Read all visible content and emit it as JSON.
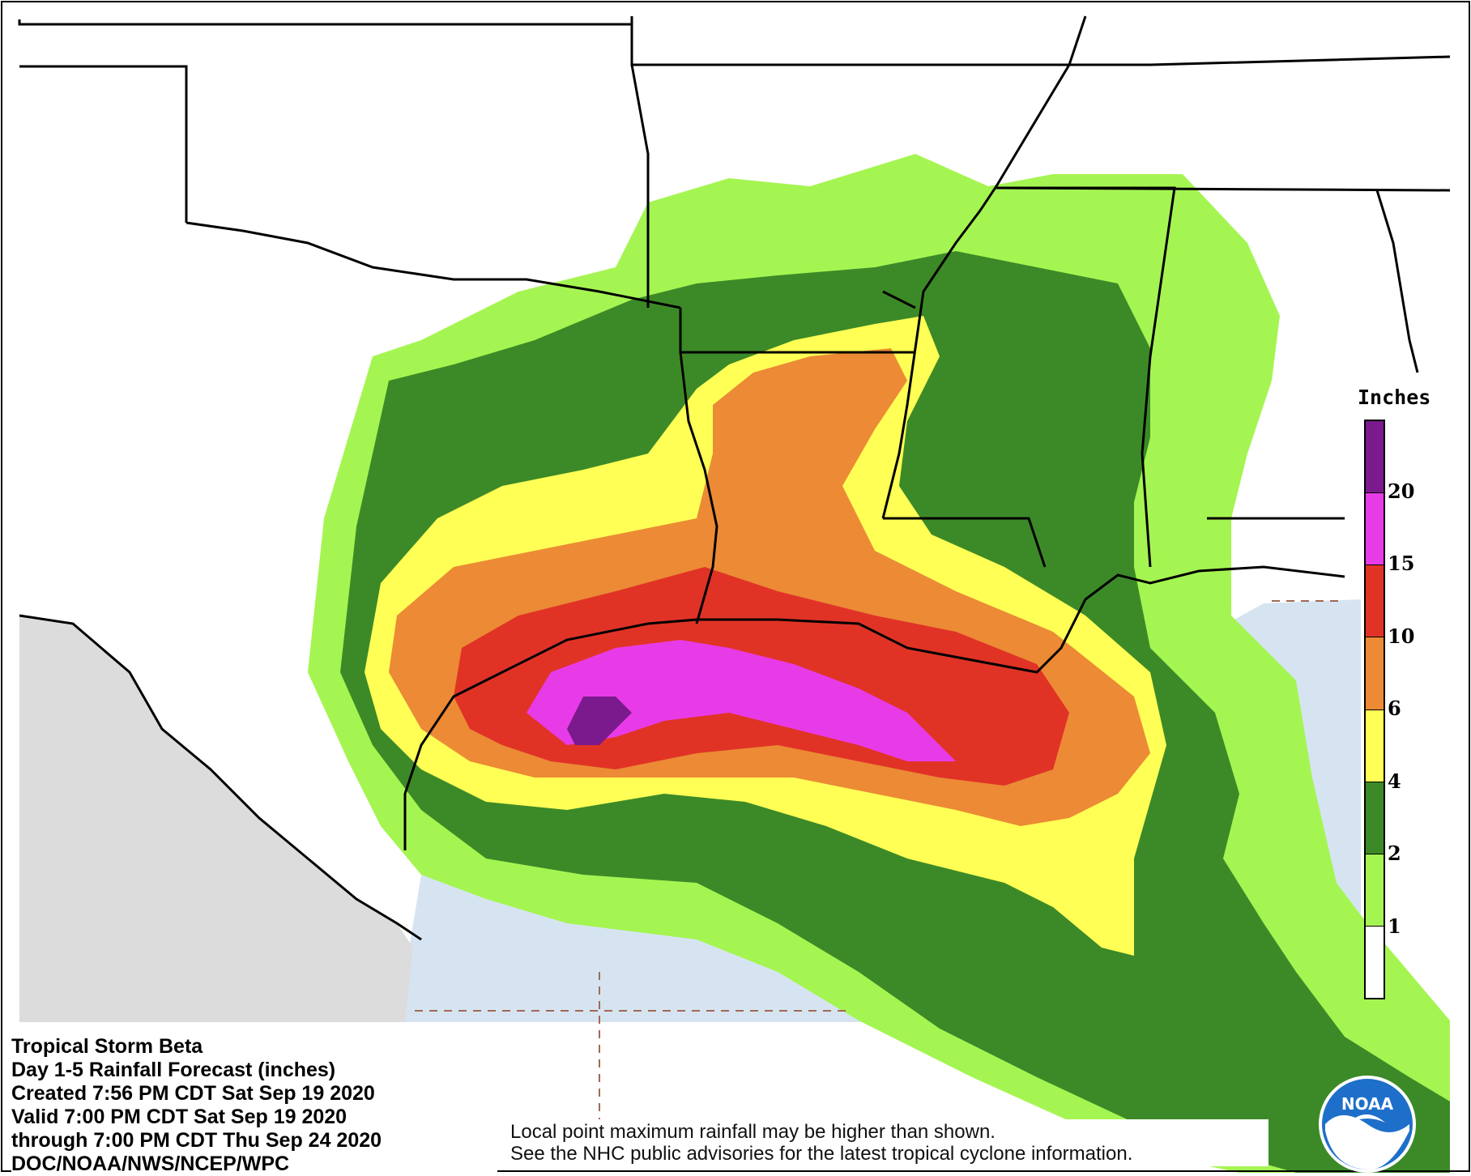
{
  "title_block": {
    "line1": "Tropical Storm Beta",
    "line2": "Day 1-5 Rainfall Forecast (inches)",
    "line3": "Created 7:56 PM CDT Sat Sep 19 2020",
    "line4": "Valid 7:00 PM CDT Sat Sep 19 2020",
    "line5": "through 7:00 PM CDT Thu Sep 24 2020",
    "line6": "DOC/NOAA/NWS/NCEP/WPC"
  },
  "disclaimer": {
    "line1": "Local point maximum rainfall may be higher than shown.",
    "line2": "See the NHC public advisories for the latest tropical cyclone information."
  },
  "legend": {
    "title": "Inches",
    "bins": [
      {
        "label": "20",
        "color": "#7b1a8c"
      },
      {
        "label": "15",
        "color": "#e83be8"
      },
      {
        "label": "10",
        "color": "#e03326"
      },
      {
        "label": "6",
        "color": "#ec8a35"
      },
      {
        "label": "4",
        "color": "#ffff55"
      },
      {
        "label": "2",
        "color": "#3c8a27"
      },
      {
        "label": "1",
        "color": "#a5f552"
      },
      {
        "label": "",
        "color": "#ffffff"
      }
    ],
    "ticks": [
      "20",
      "15",
      "10",
      "6",
      "4",
      "2",
      "1"
    ]
  },
  "logo": {
    "text": "NOAA"
  },
  "colors": {
    "land": "#ffffff",
    "mexico": "#dcdcdc",
    "gulf_water": "#d6e4f2",
    "boundary": "#000000"
  }
}
